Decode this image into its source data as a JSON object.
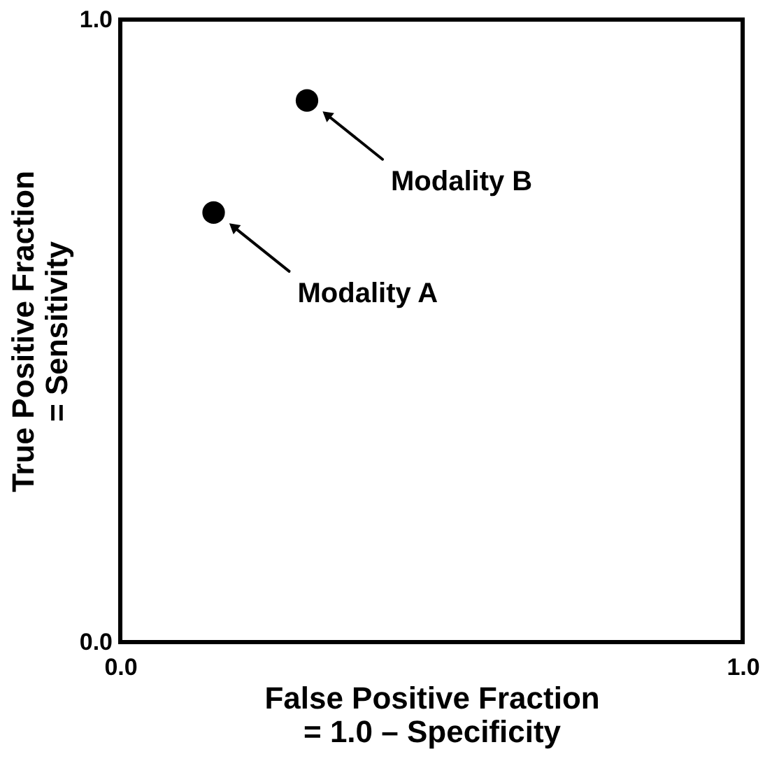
{
  "chart_data": {
    "type": "scatter",
    "xlabel": "False Positive Fraction\n= 1.0 – Specificity",
    "ylabel": "True Positive Fraction\n= Sensitivity",
    "x": [
      0.15,
      0.3
    ],
    "series": [
      {
        "color": "#000000",
        "values": [
          0.69,
          0.87
        ]
      }
    ],
    "marker": "circle",
    "xlim": [
      0,
      1
    ],
    "ylim": [
      0,
      1
    ],
    "xticks": [
      {
        "value": 0,
        "label": "0.0"
      },
      {
        "value": 1,
        "label": "1.0"
      }
    ],
    "yticks": [
      {
        "value": 0,
        "label": "0.0"
      },
      {
        "value": 1,
        "label": "1.0"
      }
    ],
    "annotations": [
      "Modality A",
      "Modality B"
    ]
  }
}
